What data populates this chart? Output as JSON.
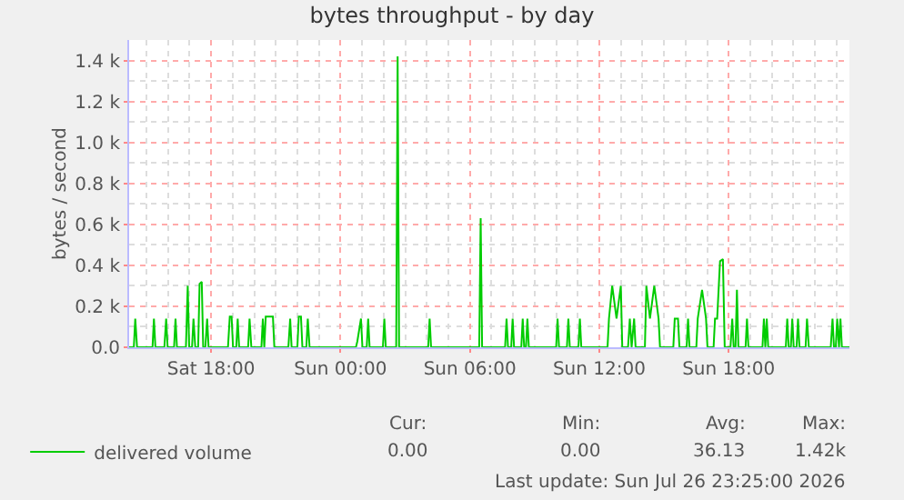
{
  "chart_data": {
    "type": "line",
    "title": "bytes throughput - by day",
    "ylabel": "bytes / second",
    "xlim": [
      "2026-07-25T14:12",
      "2026-07-26T23:36"
    ],
    "xticks": [
      {
        "value": "2026-07-25T18:00",
        "label": "Sat 18:00"
      },
      {
        "value": "2026-07-26T00:00",
        "label": "Sun 00:00"
      },
      {
        "value": "2026-07-26T06:00",
        "label": "Sun 06:00"
      },
      {
        "value": "2026-07-26T12:00",
        "label": "Sun 12:00"
      },
      {
        "value": "2026-07-26T18:00",
        "label": "Sun 18:00"
      }
    ],
    "ylim": [
      0,
      1500
    ],
    "yticks": [
      {
        "value": 0,
        "label": "0.0"
      },
      {
        "value": 200,
        "label": "0.2 k"
      },
      {
        "value": 400,
        "label": "0.4 k"
      },
      {
        "value": 600,
        "label": "0.6 k"
      },
      {
        "value": 800,
        "label": "0.8 k"
      },
      {
        "value": 1000,
        "label": "1.0 k"
      },
      {
        "value": 1200,
        "label": "1.2 k"
      },
      {
        "value": 1400,
        "label": "1.4 k"
      }
    ],
    "grid": true,
    "legend": "bottom left",
    "marker": "none",
    "line_style": "solid",
    "series": [
      {
        "name": "delivered volume",
        "color": "#00cc00",
        "x": [
          "2026-07-25T14:12",
          "2026-07-25T14:25",
          "2026-07-25T14:29",
          "2026-07-25T14:34",
          "2026-07-25T15:17",
          "2026-07-25T15:21",
          "2026-07-25T15:25",
          "2026-07-25T15:50",
          "2026-07-25T15:55",
          "2026-07-25T15:59",
          "2026-07-25T16:17",
          "2026-07-25T16:21",
          "2026-07-25T16:25",
          "2026-07-25T16:50",
          "2026-07-25T16:55",
          "2026-07-25T16:59",
          "2026-07-25T17:07",
          "2026-07-25T17:11",
          "2026-07-25T17:16",
          "2026-07-25T17:24",
          "2026-07-25T17:28",
          "2026-07-25T17:34",
          "2026-07-25T17:38",
          "2026-07-25T17:44",
          "2026-07-25T17:49",
          "2026-07-25T17:53",
          "2026-07-25T18:47",
          "2026-07-25T18:52",
          "2026-07-25T18:57",
          "2026-07-25T19:01",
          "2026-07-25T19:10",
          "2026-07-25T19:14",
          "2026-07-25T19:18",
          "2026-07-25T19:43",
          "2026-07-25T19:47",
          "2026-07-25T19:52",
          "2026-07-25T20:20",
          "2026-07-25T20:24",
          "2026-07-25T20:28",
          "2026-07-25T20:32",
          "2026-07-25T20:41",
          "2026-07-25T20:52",
          "2026-07-25T20:56",
          "2026-07-25T21:35",
          "2026-07-25T21:40",
          "2026-07-25T21:44",
          "2026-07-25T22:00",
          "2026-07-25T22:04",
          "2026-07-25T22:10",
          "2026-07-25T22:14",
          "2026-07-25T22:25",
          "2026-07-25T22:29",
          "2026-07-25T22:34",
          "2026-07-26T00:43",
          "2026-07-26T00:47",
          "2026-07-26T00:57",
          "2026-07-26T01:01",
          "2026-07-26T01:13",
          "2026-07-26T01:17",
          "2026-07-26T01:21",
          "2026-07-26T01:58",
          "2026-07-26T02:02",
          "2026-07-26T02:06",
          "2026-07-26T02:35",
          "2026-07-26T02:39",
          "2026-07-26T02:43",
          "2026-07-26T04:04",
          "2026-07-26T04:08",
          "2026-07-26T04:12",
          "2026-07-26T06:26",
          "2026-07-26T06:30",
          "2026-07-26T06:34",
          "2026-07-26T07:38",
          "2026-07-26T07:42",
          "2026-07-26T07:46",
          "2026-07-26T07:55",
          "2026-07-26T07:59",
          "2026-07-26T08:03",
          "2026-07-26T08:23",
          "2026-07-26T08:27",
          "2026-07-26T08:31",
          "2026-07-26T08:36",
          "2026-07-26T08:40",
          "2026-07-26T08:44",
          "2026-07-26T10:00",
          "2026-07-26T10:04",
          "2026-07-26T10:08",
          "2026-07-26T10:30",
          "2026-07-26T10:34",
          "2026-07-26T10:38",
          "2026-07-26T11:02",
          "2026-07-26T11:06",
          "2026-07-26T11:10",
          "2026-07-26T12:23",
          "2026-07-26T12:27",
          "2026-07-26T12:36",
          "2026-07-26T12:48",
          "2026-07-26T13:00",
          "2026-07-26T13:04",
          "2026-07-26T13:20",
          "2026-07-26T13:25",
          "2026-07-26T13:30",
          "2026-07-26T13:37",
          "2026-07-26T13:41",
          "2026-07-26T14:07",
          "2026-07-26T14:11",
          "2026-07-26T14:21",
          "2026-07-26T14:33",
          "2026-07-26T14:45",
          "2026-07-26T14:49",
          "2026-07-26T15:26",
          "2026-07-26T15:30",
          "2026-07-26T15:39",
          "2026-07-26T15:43",
          "2026-07-26T16:03",
          "2026-07-26T16:07",
          "2026-07-26T16:11",
          "2026-07-26T16:30",
          "2026-07-26T16:34",
          "2026-07-26T16:46",
          "2026-07-26T16:57",
          "2026-07-26T17:01",
          "2026-07-26T17:18",
          "2026-07-26T17:22",
          "2026-07-26T17:28",
          "2026-07-26T17:36",
          "2026-07-26T17:44",
          "2026-07-26T17:49",
          "2026-07-26T18:05",
          "2026-07-26T18:10",
          "2026-07-26T18:14",
          "2026-07-26T18:19",
          "2026-07-26T18:23",
          "2026-07-26T18:27",
          "2026-07-26T18:47",
          "2026-07-26T18:51",
          "2026-07-26T18:55",
          "2026-07-26T19:34",
          "2026-07-26T19:38",
          "2026-07-26T19:42",
          "2026-07-26T19:46",
          "2026-07-26T19:50",
          "2026-07-26T20:39",
          "2026-07-26T20:43",
          "2026-07-26T20:47",
          "2026-07-26T20:53",
          "2026-07-26T20:57",
          "2026-07-26T21:01",
          "2026-07-26T21:09",
          "2026-07-26T21:13",
          "2026-07-26T21:17",
          "2026-07-26T21:34",
          "2026-07-26T21:38",
          "2026-07-26T21:43",
          "2026-07-26T22:44",
          "2026-07-26T22:49",
          "2026-07-26T22:53",
          "2026-07-26T22:58",
          "2026-07-26T23:02",
          "2026-07-26T23:07",
          "2026-07-26T23:11",
          "2026-07-26T23:15",
          "2026-07-26T23:36"
        ],
        "values": [
          0,
          0,
          140,
          0,
          0,
          140,
          0,
          0,
          140,
          0,
          0,
          140,
          0,
          0,
          300,
          0,
          0,
          140,
          0,
          0,
          310,
          320,
          0,
          0,
          140,
          0,
          0,
          150,
          150,
          0,
          0,
          140,
          0,
          0,
          140,
          0,
          0,
          140,
          0,
          150,
          150,
          150,
          0,
          0,
          140,
          0,
          0,
          150,
          150,
          0,
          0,
          140,
          0,
          0,
          30,
          140,
          0,
          0,
          140,
          0,
          0,
          140,
          0,
          0,
          1420,
          0,
          0,
          140,
          0,
          0,
          630,
          0,
          0,
          140,
          0,
          0,
          140,
          0,
          0,
          140,
          0,
          0,
          140,
          0,
          0,
          140,
          0,
          0,
          140,
          0,
          0,
          140,
          0,
          0,
          140,
          300,
          140,
          300,
          0,
          0,
          140,
          0,
          140,
          0,
          0,
          300,
          140,
          300,
          140,
          0,
          0,
          140,
          140,
          0,
          0,
          140,
          0,
          0,
          140,
          280,
          140,
          0,
          0,
          140,
          140,
          420,
          430,
          0,
          0,
          140,
          0,
          0,
          280,
          0,
          0,
          140,
          0,
          0,
          140,
          0,
          140,
          0,
          0,
          140,
          0,
          0,
          140,
          0,
          0,
          140,
          0,
          0,
          140,
          0,
          0,
          140,
          0,
          0,
          140,
          0,
          140,
          0,
          0
        ]
      }
    ],
    "annotations": [
      "Cur:",
      "Min:",
      "Avg:",
      "Max:",
      "0.00",
      "0.00",
      "36.13",
      "1.42k",
      "Last update: Sun Jul 26 23:25:00 2026"
    ]
  }
}
